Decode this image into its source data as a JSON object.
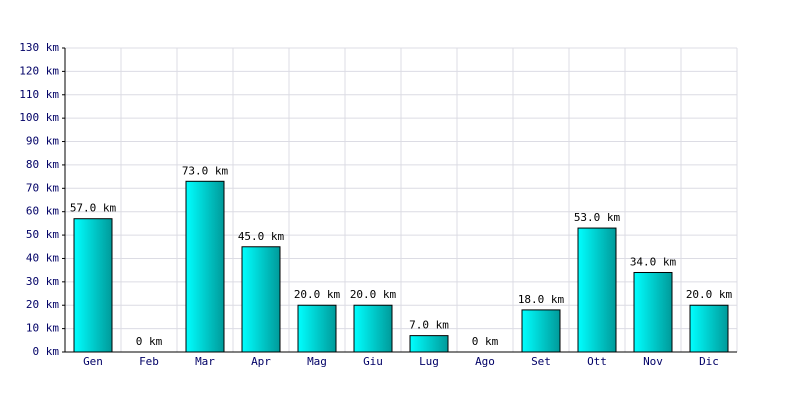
{
  "chart_data": {
    "type": "bar",
    "categories": [
      "Gen",
      "Feb",
      "Mar",
      "Apr",
      "Mag",
      "Giu",
      "Lug",
      "Ago",
      "Set",
      "Ott",
      "Nov",
      "Dic"
    ],
    "values": [
      57,
      0,
      73,
      45,
      20,
      20,
      7,
      0,
      18,
      53,
      34,
      20
    ],
    "value_labels": [
      "57.0 km",
      "0 km",
      "73.0 km",
      "45.0 km",
      "20.0 km",
      "20.0 km",
      "7.0 km",
      "0 km",
      "18.0 km",
      "53.0 km",
      "34.0 km",
      "20.0 km"
    ],
    "color": "#00cccc",
    "ylim": [
      0,
      130
    ],
    "yticks": [
      {
        "value": 0,
        "label": "0 km"
      },
      {
        "value": 10,
        "label": "10 km"
      },
      {
        "value": 20,
        "label": "20 km"
      },
      {
        "value": 30,
        "label": "30 km"
      },
      {
        "value": 40,
        "label": "40 km"
      },
      {
        "value": 50,
        "label": "50 km"
      },
      {
        "value": 60,
        "label": "60 km"
      },
      {
        "value": 70,
        "label": "70 km"
      },
      {
        "value": 80,
        "label": "80 km"
      },
      {
        "value": 90,
        "label": "90 km"
      },
      {
        "value": 100,
        "label": "100 km"
      },
      {
        "value": 110,
        "label": "110 km"
      },
      {
        "value": 120,
        "label": "120 km"
      },
      {
        "value": 130,
        "label": "130 km"
      }
    ],
    "grid": true
  }
}
